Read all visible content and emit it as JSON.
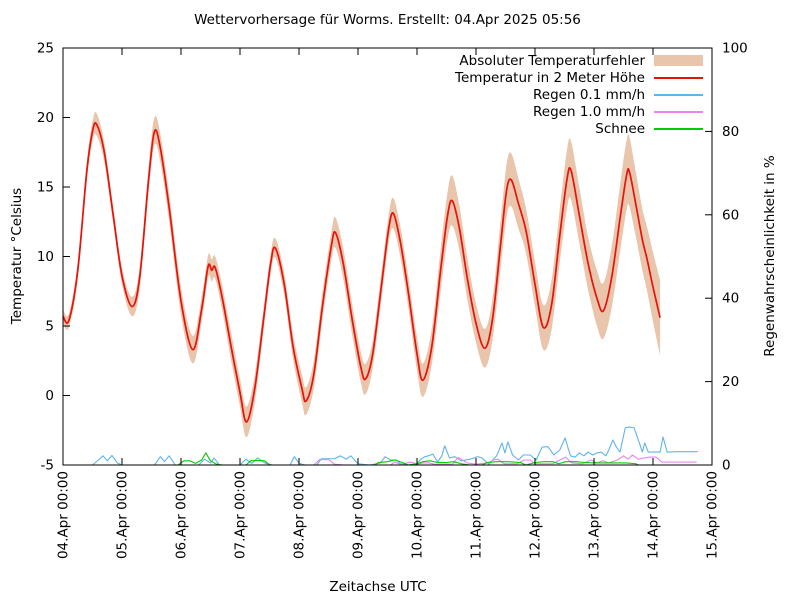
{
  "chart_data": {
    "type": "line",
    "title": "Wettervorhersage für Worms. Erstellt: 04.Apr 2025 05:56",
    "xlabel": "Zeitachse UTC",
    "y_left": {
      "label": "Temperatur °Celsius",
      "min": -5,
      "max": 25,
      "ticks": [
        25,
        20,
        15,
        10,
        5,
        0,
        -5
      ]
    },
    "y_right": {
      "label": "Regenwahrscheinlichkeit in %",
      "min": 0,
      "max": 100,
      "ticks": [
        100,
        80,
        60,
        40,
        20,
        0
      ]
    },
    "x_axis": {
      "span_days": 11,
      "tick_labels": [
        "04.Apr 00:00",
        "05.Apr 00:00",
        "06.Apr 00:00",
        "07.Apr 00:00",
        "08.Apr 00:00",
        "09.Apr 00:00",
        "10.Apr 00:00",
        "11.Apr 00:00",
        "12.Apr 00:00",
        "13.Apr 00:00",
        "14.Apr 00:00",
        "15.Apr 00:00"
      ]
    },
    "legend": [
      {
        "label": "Absoluter Temperaturfehler",
        "type": "band",
        "color": "#e8c5ab"
      },
      {
        "label": "Temperatur in 2 Meter Höhe",
        "type": "line",
        "color": "#e8120b"
      },
      {
        "label": "Regen 0.1 mm/h",
        "type": "line",
        "color": "#5fb5e8"
      },
      {
        "label": "Regen 1.0 mm/h",
        "type": "line",
        "color": "#ee82ee"
      },
      {
        "label": "Schnee",
        "type": "line",
        "color": "#00cc00"
      }
    ],
    "series": {
      "temperature": {
        "name": "Temperatur in 2 Meter Höhe",
        "axis": "left",
        "unit": "°C",
        "color": "#e8120b",
        "band_color": "#e8c5ab",
        "band_name": "Absoluter Temperaturfehler",
        "points_t_value_error": [
          [
            0.0,
            5.7,
            0.5
          ],
          [
            0.1,
            5.4,
            0.5
          ],
          [
            0.25,
            9.0,
            0.6
          ],
          [
            0.4,
            16.0,
            0.7
          ],
          [
            0.5,
            19.0,
            0.7
          ],
          [
            0.57,
            19.5,
            0.8
          ],
          [
            0.7,
            17.5,
            0.7
          ],
          [
            0.85,
            13.0,
            0.6
          ],
          [
            1.0,
            8.6,
            0.6
          ],
          [
            1.17,
            6.4,
            0.7
          ],
          [
            1.3,
            8.5,
            0.8
          ],
          [
            1.45,
            15.5,
            0.9
          ],
          [
            1.55,
            19.0,
            1.0
          ],
          [
            1.65,
            17.8,
            1.0
          ],
          [
            1.8,
            13.5,
            1.0
          ],
          [
            2.0,
            6.8,
            1.0
          ],
          [
            2.2,
            3.3,
            1.0
          ],
          [
            2.35,
            6.2,
            0.9
          ],
          [
            2.46,
            9.3,
            0.8
          ],
          [
            2.52,
            9.0,
            0.8
          ],
          [
            2.58,
            9.2,
            0.8
          ],
          [
            2.7,
            7.0,
            0.9
          ],
          [
            2.85,
            3.5,
            1.0
          ],
          [
            3.0,
            0.2,
            1.0
          ],
          [
            3.11,
            -1.9,
            1.1
          ],
          [
            3.25,
            0.5,
            1.0
          ],
          [
            3.4,
            5.5,
            0.8
          ],
          [
            3.52,
            9.5,
            0.7
          ],
          [
            3.6,
            10.6,
            0.7
          ],
          [
            3.75,
            8.0,
            0.8
          ],
          [
            3.9,
            3.5,
            0.9
          ],
          [
            4.05,
            0.5,
            1.0
          ],
          [
            4.12,
            -0.4,
            1.0
          ],
          [
            4.25,
            1.5,
            1.0
          ],
          [
            4.4,
            6.5,
            1.0
          ],
          [
            4.55,
            10.8,
            1.0
          ],
          [
            4.62,
            11.7,
            1.1
          ],
          [
            4.75,
            9.5,
            1.1
          ],
          [
            4.9,
            5.5,
            1.1
          ],
          [
            5.05,
            2.0,
            1.1
          ],
          [
            5.13,
            1.2,
            1.1
          ],
          [
            5.25,
            3.0,
            1.0
          ],
          [
            5.4,
            8.0,
            1.0
          ],
          [
            5.52,
            12.0,
            1.0
          ],
          [
            5.6,
            13.1,
            1.1
          ],
          [
            5.72,
            11.0,
            1.1
          ],
          [
            5.85,
            7.5,
            1.1
          ],
          [
            6.0,
            3.0,
            1.2
          ],
          [
            6.1,
            1.1,
            1.2
          ],
          [
            6.25,
            3.5,
            1.3
          ],
          [
            6.4,
            9.0,
            1.5
          ],
          [
            6.52,
            13.0,
            1.7
          ],
          [
            6.6,
            14.0,
            1.8
          ],
          [
            6.72,
            12.0,
            1.6
          ],
          [
            6.85,
            8.5,
            1.5
          ],
          [
            7.0,
            5.2,
            1.4
          ],
          [
            7.15,
            3.4,
            1.4
          ],
          [
            7.28,
            5.5,
            1.5
          ],
          [
            7.42,
            11.0,
            1.7
          ],
          [
            7.52,
            14.8,
            1.9
          ],
          [
            7.6,
            15.5,
            1.9
          ],
          [
            7.72,
            13.8,
            1.8
          ],
          [
            7.85,
            11.8,
            1.6
          ],
          [
            8.0,
            8.0,
            1.6
          ],
          [
            8.14,
            4.9,
            1.6
          ],
          [
            8.28,
            6.5,
            1.8
          ],
          [
            8.42,
            11.5,
            1.9
          ],
          [
            8.54,
            15.5,
            2.1
          ],
          [
            8.61,
            16.2,
            2.1
          ],
          [
            8.75,
            13.0,
            2.0
          ],
          [
            8.9,
            9.5,
            1.9
          ],
          [
            9.05,
            7.0,
            2.0
          ],
          [
            9.16,
            6.1,
            2.0
          ],
          [
            9.3,
            8.5,
            2.2
          ],
          [
            9.45,
            13.0,
            2.4
          ],
          [
            9.55,
            15.8,
            2.5
          ],
          [
            9.6,
            16.1,
            2.5
          ],
          [
            9.72,
            13.5,
            2.3
          ],
          [
            9.82,
            11.2,
            2.2
          ],
          [
            9.9,
            9.8,
            2.3
          ],
          [
            10.0,
            7.8,
            2.5
          ],
          [
            10.12,
            5.6,
            2.7
          ]
        ]
      },
      "rain_01": {
        "name": "Regen 0.1 mm/h",
        "axis": "right",
        "unit": "%",
        "color": "#5fb5e8",
        "points_t_percent": [
          [
            0.0,
            0
          ],
          [
            0.5,
            0
          ],
          [
            0.6,
            1.2
          ],
          [
            0.68,
            2.2
          ],
          [
            0.75,
            1.0
          ],
          [
            0.83,
            2.3
          ],
          [
            0.92,
            0.5
          ],
          [
            1.0,
            0
          ],
          [
            1.55,
            0
          ],
          [
            1.65,
            2.0
          ],
          [
            1.72,
            0.8
          ],
          [
            1.8,
            2.2
          ],
          [
            1.9,
            0
          ],
          [
            2.3,
            0
          ],
          [
            2.4,
            1.4
          ],
          [
            2.5,
            0.5
          ],
          [
            2.56,
            1.7
          ],
          [
            2.65,
            0
          ],
          [
            3.0,
            0
          ],
          [
            3.1,
            1.4
          ],
          [
            3.2,
            0.4
          ],
          [
            3.3,
            1.7
          ],
          [
            3.42,
            0.5
          ],
          [
            3.55,
            0
          ],
          [
            3.85,
            0
          ],
          [
            3.92,
            2.0
          ],
          [
            4.0,
            0.4
          ],
          [
            4.1,
            0
          ],
          [
            4.3,
            0
          ],
          [
            4.38,
            1.5
          ],
          [
            4.6,
            1.5
          ],
          [
            4.7,
            2.2
          ],
          [
            4.8,
            1.4
          ],
          [
            4.88,
            2.2
          ],
          [
            5.0,
            0.3
          ],
          [
            5.2,
            0
          ],
          [
            5.38,
            0.5
          ],
          [
            5.46,
            2.0
          ],
          [
            5.55,
            1.2
          ],
          [
            5.65,
            1.2
          ],
          [
            5.72,
            0.3
          ],
          [
            5.85,
            0
          ],
          [
            6.0,
            0.3
          ],
          [
            6.05,
            1.2
          ],
          [
            6.12,
            1.9
          ],
          [
            6.19,
            2.2
          ],
          [
            6.27,
            2.6
          ],
          [
            6.35,
            0.7
          ],
          [
            6.42,
            2.2
          ],
          [
            6.47,
            4.6
          ],
          [
            6.55,
            1.7
          ],
          [
            6.64,
            2.0
          ],
          [
            6.75,
            1.0
          ],
          [
            6.9,
            1.4
          ],
          [
            7.03,
            2.0
          ],
          [
            7.1,
            1.7
          ],
          [
            7.22,
            0.2
          ],
          [
            7.35,
            2.2
          ],
          [
            7.44,
            5.3
          ],
          [
            7.49,
            2.9
          ],
          [
            7.54,
            5.5
          ],
          [
            7.62,
            2.4
          ],
          [
            7.72,
            1.2
          ],
          [
            7.8,
            2.4
          ],
          [
            7.92,
            2.4
          ],
          [
            8.02,
            1.2
          ],
          [
            8.12,
            4.3
          ],
          [
            8.22,
            4.4
          ],
          [
            8.32,
            2.4
          ],
          [
            8.42,
            3.6
          ],
          [
            8.51,
            6.5
          ],
          [
            8.6,
            2.2
          ],
          [
            8.68,
            1.9
          ],
          [
            8.75,
            2.9
          ],
          [
            8.83,
            2.2
          ],
          [
            8.9,
            3.1
          ],
          [
            8.98,
            2.4
          ],
          [
            9.05,
            2.9
          ],
          [
            9.12,
            3.1
          ],
          [
            9.2,
            2.2
          ],
          [
            9.25,
            3.6
          ],
          [
            9.32,
            6.0
          ],
          [
            9.38,
            4.3
          ],
          [
            9.44,
            3.1
          ],
          [
            9.53,
            8.9
          ],
          [
            9.6,
            9.1
          ],
          [
            9.68,
            8.9
          ],
          [
            9.78,
            4.8
          ],
          [
            9.82,
            3.1
          ],
          [
            9.86,
            5.3
          ],
          [
            9.92,
            3.1
          ],
          [
            10.05,
            3.1
          ],
          [
            10.12,
            3.1
          ],
          [
            10.17,
            6.7
          ],
          [
            10.24,
            3.1
          ],
          [
            10.4,
            3.2
          ],
          [
            10.76,
            3.2
          ]
        ]
      },
      "rain_10": {
        "name": "Regen 1.0 mm/h",
        "axis": "right",
        "unit": "%",
        "color": "#ee82ee",
        "points_t_percent": [
          [
            0.0,
            0
          ],
          [
            4.25,
            0
          ],
          [
            4.35,
            1.3
          ],
          [
            4.5,
            1.3
          ],
          [
            4.6,
            0.2
          ],
          [
            4.75,
            0
          ],
          [
            5.55,
            0
          ],
          [
            5.62,
            0.7
          ],
          [
            5.72,
            0.2
          ],
          [
            5.9,
            0.7
          ],
          [
            6.0,
            0.2
          ],
          [
            6.1,
            0.5
          ],
          [
            6.2,
            0.5
          ],
          [
            6.3,
            0.2
          ],
          [
            6.6,
            0.2
          ],
          [
            6.7,
            1.8
          ],
          [
            6.85,
            0.5
          ],
          [
            7.0,
            0.2
          ],
          [
            7.2,
            0.5
          ],
          [
            7.3,
            1.2
          ],
          [
            7.37,
            1.4
          ],
          [
            7.48,
            0.3
          ],
          [
            7.7,
            0.3
          ],
          [
            7.82,
            1.2
          ],
          [
            7.92,
            1.2
          ],
          [
            8.0,
            0.3
          ],
          [
            8.3,
            0.3
          ],
          [
            8.42,
            1.2
          ],
          [
            8.52,
            1.9
          ],
          [
            8.62,
            0.5
          ],
          [
            8.8,
            0.3
          ],
          [
            8.95,
            1.2
          ],
          [
            9.05,
            0.5
          ],
          [
            9.15,
            1.0
          ],
          [
            9.25,
            0.5
          ],
          [
            9.4,
            1.2
          ],
          [
            9.5,
            2.2
          ],
          [
            9.58,
            1.4
          ],
          [
            9.65,
            2.4
          ],
          [
            9.75,
            1.4
          ],
          [
            9.85,
            1.7
          ],
          [
            9.95,
            1.9
          ],
          [
            10.05,
            1.9
          ],
          [
            10.15,
            0.7
          ],
          [
            10.74,
            0.7
          ]
        ]
      },
      "snow": {
        "name": "Schnee",
        "axis": "right",
        "unit": "%",
        "color": "#00cc00",
        "points_t_percent": [
          [
            0.0,
            0
          ],
          [
            1.95,
            0
          ],
          [
            2.05,
            1.0
          ],
          [
            2.15,
            1.0
          ],
          [
            2.25,
            0.4
          ],
          [
            2.35,
            1.2
          ],
          [
            2.42,
            2.9
          ],
          [
            2.5,
            1.0
          ],
          [
            2.6,
            0.2
          ],
          [
            2.7,
            0
          ],
          [
            3.1,
            0
          ],
          [
            3.18,
            1.0
          ],
          [
            3.3,
            1.1
          ],
          [
            3.42,
            1.0
          ],
          [
            3.5,
            0
          ],
          [
            5.28,
            0
          ],
          [
            5.35,
            0.6
          ],
          [
            5.5,
            0.8
          ],
          [
            5.62,
            1.2
          ],
          [
            5.75,
            0.6
          ],
          [
            5.85,
            0
          ],
          [
            6.0,
            0.3
          ],
          [
            6.1,
            0.8
          ],
          [
            6.22,
            1.0
          ],
          [
            6.35,
            0.6
          ],
          [
            6.5,
            0.6
          ],
          [
            6.62,
            0.8
          ],
          [
            6.75,
            0.3
          ],
          [
            6.9,
            0
          ],
          [
            7.1,
            0
          ],
          [
            7.19,
            0.6
          ],
          [
            7.35,
            0.8
          ],
          [
            7.55,
            0.8
          ],
          [
            7.75,
            0.6
          ],
          [
            7.85,
            0
          ],
          [
            8.0,
            0.6
          ],
          [
            8.15,
            0.8
          ],
          [
            8.3,
            0.8
          ],
          [
            8.4,
            0.3
          ],
          [
            8.52,
            0.8
          ],
          [
            8.7,
            0.8
          ],
          [
            8.85,
            0.6
          ],
          [
            9.0,
            0.5
          ],
          [
            9.2,
            0.5
          ],
          [
            9.4,
            0.5
          ],
          [
            9.55,
            0.5
          ],
          [
            9.71,
            0.3
          ],
          [
            9.75,
            0
          ]
        ]
      }
    },
    "layout_hints": {
      "grid": false,
      "legend_position": "top-right-inside",
      "x_tick_label_rotation_deg": -90
    }
  }
}
